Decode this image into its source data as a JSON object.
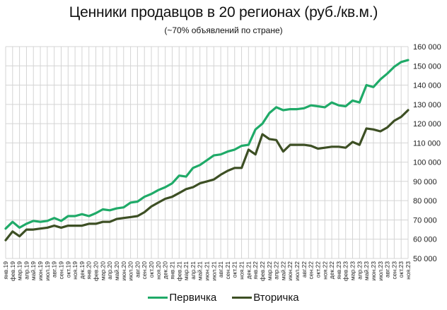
{
  "colors": {
    "primary": "#1faa68",
    "secondary": "#3d4f24",
    "grid": "#d4d4d4"
  },
  "chart_data": {
    "type": "line",
    "title": "Ценники продавцов в 20 регионах (руб./кв.м.)",
    "subtitle": "(~70% объявлений по стране)",
    "xlabel": "",
    "ylabel": "",
    "ylim": [
      50000,
      160000
    ],
    "yticks": [
      "160 000",
      "150 000",
      "140 000",
      "130 000",
      "120 000",
      "110 000",
      "100 000",
      "90 000",
      "80 000",
      "70 000",
      "60 000",
      "50 000"
    ],
    "grid": true,
    "legend_position": "bottom",
    "categories": [
      "янв.19",
      "фев.19",
      "мар.19",
      "апр.19",
      "май.19",
      "июн.19",
      "июл.19",
      "авг.19",
      "сен.19",
      "окт.19",
      "ноя.19",
      "дек.19",
      "янв.20",
      "фев.20",
      "мар.20",
      "апр.20",
      "май.20",
      "июн.20",
      "июл.20",
      "авг.20",
      "сен.20",
      "окт.20",
      "ноя.20",
      "дек.20",
      "янв.21",
      "фев.21",
      "мар.21",
      "апр.21",
      "май.21",
      "июн.21",
      "июл.21",
      "авг.21",
      "сен.21",
      "окт.21",
      "ноя.21",
      "дек.21",
      "янв.22",
      "фев.22",
      "мар.22",
      "апр.22",
      "май.22",
      "июн.22",
      "июл.22",
      "авг.22",
      "сен.22",
      "окт.22",
      "ноя.22",
      "дек.22",
      "янв.23",
      "фев.23",
      "мар.23",
      "апр.23",
      "май.23",
      "июн.23",
      "июл.23",
      "авг.23",
      "сен.23",
      "окт.23",
      "ноя.23"
    ],
    "series": [
      {
        "name": "Первичка",
        "values": [
          65500,
          69000,
          66000,
          68000,
          69500,
          69000,
          69500,
          71000,
          69500,
          72000,
          72000,
          73000,
          72000,
          73500,
          75500,
          75000,
          76000,
          76500,
          79000,
          79500,
          82000,
          83500,
          85500,
          87000,
          89000,
          93000,
          92500,
          97000,
          98500,
          101000,
          103500,
          104000,
          105500,
          106500,
          108500,
          109000,
          117000,
          120000,
          125500,
          128500,
          127000,
          127500,
          127500,
          128000,
          129500,
          129000,
          128500,
          131000,
          129500,
          129000,
          132000,
          131000,
          140000,
          139000,
          143000,
          146000,
          149500,
          152000,
          153000
        ]
      },
      {
        "name": "Вторичка",
        "values": [
          59500,
          64000,
          61500,
          65000,
          65000,
          65500,
          66000,
          67000,
          66000,
          67000,
          67000,
          67000,
          68000,
          68000,
          69000,
          69000,
          70500,
          71000,
          71500,
          72000,
          74000,
          77000,
          79000,
          81000,
          82000,
          84000,
          86000,
          87000,
          89000,
          90000,
          91000,
          93500,
          95500,
          97000,
          97000,
          106500,
          104000,
          114500,
          112000,
          111500,
          105500,
          109000,
          109000,
          109000,
          108500,
          107000,
          107500,
          108000,
          108000,
          107500,
          110500,
          109000,
          117500,
          117000,
          116000,
          118000,
          121500,
          123500,
          127000
        ]
      }
    ]
  },
  "legend": {
    "items": [
      {
        "label": "Первичка"
      },
      {
        "label": "Вторичка"
      }
    ]
  }
}
